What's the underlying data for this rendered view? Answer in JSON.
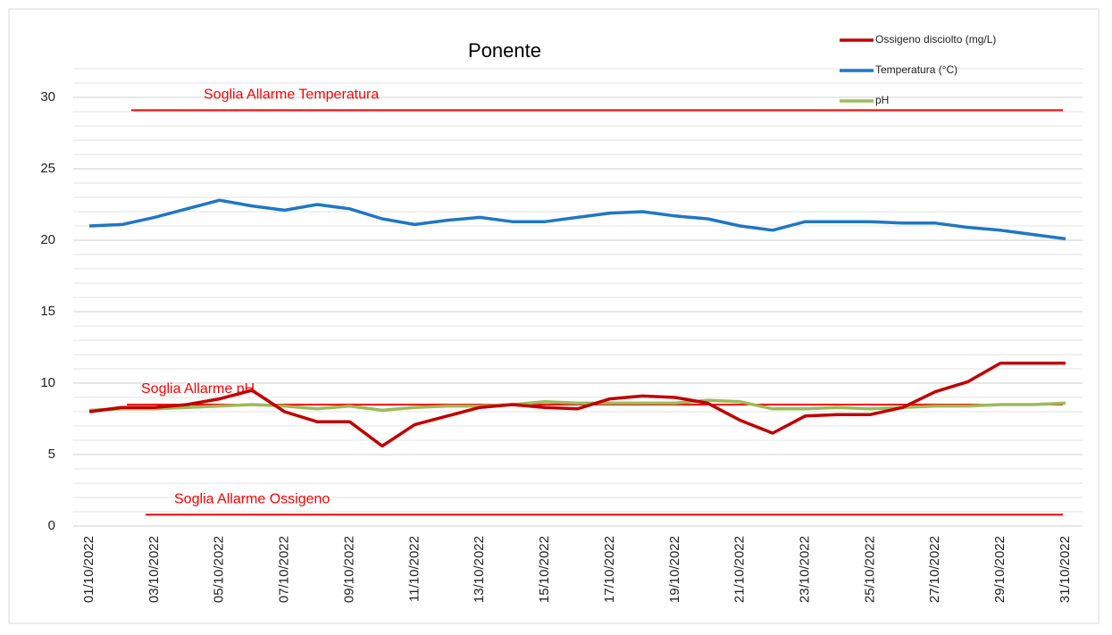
{
  "chart_data": {
    "type": "line",
    "title": "Ponente",
    "categories": [
      "01/10/2022",
      null,
      "03/10/2022",
      null,
      "05/10/2022",
      null,
      "07/10/2022",
      null,
      "09/10/2022",
      null,
      "11/10/2022",
      null,
      "13/10/2022",
      null,
      "15/10/2022",
      null,
      "17/10/2022",
      null,
      "19/10/2022",
      null,
      "21/10/2022",
      null,
      "23/10/2022",
      null,
      "25/10/2022",
      null,
      "27/10/2022",
      null,
      "29/10/2022",
      null,
      "31/10/2022"
    ],
    "series": [
      {
        "name": "Ossigeno disciolto (mg/L)",
        "color": "#c00000",
        "values": [
          8.0,
          8.3,
          8.3,
          8.5,
          8.9,
          9.5,
          8.0,
          7.3,
          7.3,
          5.6,
          7.1,
          7.7,
          8.3,
          8.5,
          8.3,
          8.2,
          8.9,
          9.1,
          9.0,
          8.6,
          7.4,
          6.5,
          7.7,
          7.8,
          7.8,
          8.3,
          9.4,
          10.1,
          11.4,
          11.4,
          11.4
        ]
      },
      {
        "name": "Temperatura (°C)",
        "color": "#1f77c4",
        "values": [
          21.0,
          21.1,
          21.6,
          22.2,
          22.8,
          22.4,
          22.1,
          22.5,
          22.2,
          21.5,
          21.1,
          21.4,
          21.6,
          21.3,
          21.3,
          21.6,
          21.9,
          22.0,
          21.7,
          21.5,
          21.0,
          20.7,
          21.3,
          21.3,
          21.3,
          21.2,
          21.2,
          20.9,
          20.7,
          20.4,
          20.1
        ]
      },
      {
        "name": "pH",
        "color": "#9bbb59",
        "values": [
          8.1,
          8.2,
          8.2,
          8.3,
          8.4,
          8.5,
          8.4,
          8.2,
          8.4,
          8.1,
          8.3,
          8.4,
          8.4,
          8.5,
          8.7,
          8.6,
          8.6,
          8.6,
          8.6,
          8.8,
          8.7,
          8.2,
          8.2,
          8.3,
          8.2,
          8.3,
          8.4,
          8.4,
          8.5,
          8.5,
          8.6
        ]
      }
    ],
    "thresholds": [
      {
        "label": "Soglia Allarme Temperatura",
        "value": 29.1,
        "color": "#ff0000"
      },
      {
        "label": "Soglia  Allarme pH",
        "value": 8.5,
        "color": "#ff0000"
      },
      {
        "label": "Soglia  Allarme Ossigeno",
        "value": 0.8,
        "color": "#ff0000"
      }
    ],
    "ylim": [
      0,
      32
    ],
    "yticks": [
      0,
      5,
      10,
      15,
      20,
      25,
      30
    ],
    "grid": true,
    "minor_grid": true,
    "legend": "top-right"
  }
}
